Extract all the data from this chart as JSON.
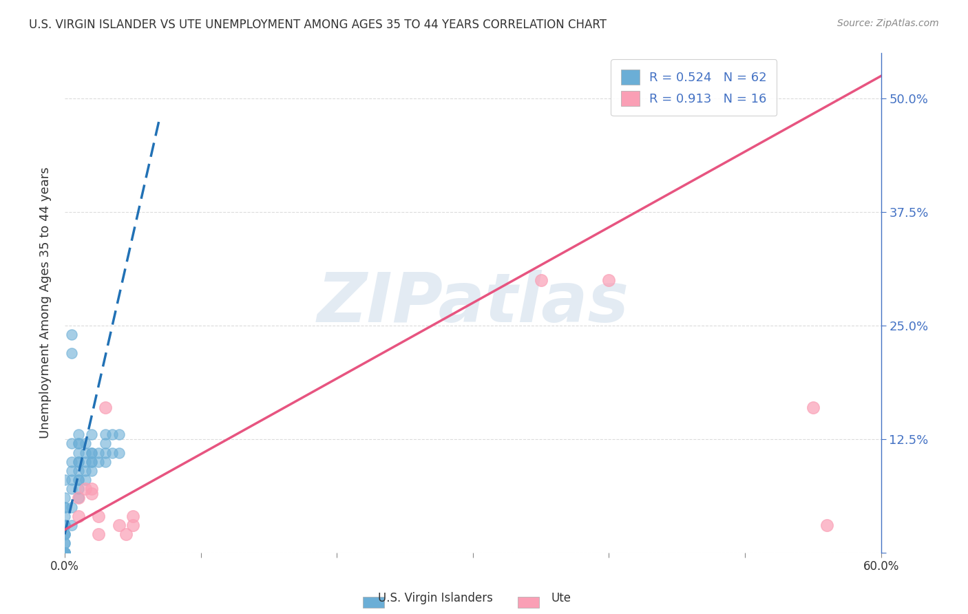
{
  "title": "U.S. VIRGIN ISLANDER VS UTE UNEMPLOYMENT AMONG AGES 35 TO 44 YEARS CORRELATION CHART",
  "source": "Source: ZipAtlas.com",
  "xlabel": "",
  "ylabel": "Unemployment Among Ages 35 to 44 years",
  "xlim": [
    0,
    0.6
  ],
  "ylim": [
    0,
    0.55
  ],
  "xticks": [
    0.0,
    0.1,
    0.2,
    0.3,
    0.4,
    0.5,
    0.6
  ],
  "yticks": [
    0.0,
    0.125,
    0.25,
    0.375,
    0.5
  ],
  "ytick_labels": [
    "",
    "12.5%",
    "25.0%",
    "37.5%",
    "50.0%"
  ],
  "xtick_labels": [
    "0.0%",
    "",
    "",
    "",
    "",
    "",
    "60.0%"
  ],
  "legend_labels": [
    "U.S. Virgin Islanders",
    "Ute"
  ],
  "blue_R": "0.524",
  "blue_N": "62",
  "pink_R": "0.913",
  "pink_N": "16",
  "blue_color": "#6baed6",
  "pink_color": "#fa9fb5",
  "blue_line_color": "#2171b5",
  "pink_line_color": "#e75480",
  "watermark": "ZIPatlas",
  "blue_scatter_x": [
    0.0,
    0.0,
    0.0,
    0.0,
    0.0,
    0.0,
    0.0,
    0.0,
    0.0,
    0.0,
    0.0,
    0.0,
    0.005,
    0.005,
    0.005,
    0.005,
    0.005,
    0.005,
    0.005,
    0.01,
    0.01,
    0.01,
    0.01,
    0.01,
    0.01,
    0.01,
    0.01,
    0.01,
    0.01,
    0.01,
    0.015,
    0.015,
    0.015,
    0.015,
    0.015,
    0.02,
    0.02,
    0.02,
    0.02,
    0.02,
    0.02,
    0.025,
    0.025,
    0.03,
    0.03,
    0.03,
    0.03,
    0.035,
    0.035,
    0.04,
    0.04,
    0.005,
    0.005,
    0.0,
    0.0,
    0.0,
    0.0,
    0.0,
    0.0,
    0.0,
    0.0,
    0.0
  ],
  "blue_scatter_y": [
    0.0,
    0.0,
    0.0,
    0.0,
    0.0,
    0.0,
    0.0,
    0.02,
    0.02,
    0.03,
    0.04,
    0.05,
    0.03,
    0.05,
    0.07,
    0.08,
    0.09,
    0.1,
    0.12,
    0.06,
    0.07,
    0.08,
    0.08,
    0.09,
    0.1,
    0.1,
    0.11,
    0.12,
    0.12,
    0.13,
    0.08,
    0.09,
    0.1,
    0.11,
    0.12,
    0.09,
    0.1,
    0.1,
    0.11,
    0.11,
    0.13,
    0.1,
    0.11,
    0.1,
    0.11,
    0.12,
    0.13,
    0.11,
    0.13,
    0.11,
    0.13,
    0.22,
    0.24,
    0.0,
    0.0,
    0.01,
    0.01,
    0.02,
    0.03,
    0.05,
    0.06,
    0.08
  ],
  "pink_scatter_x": [
    0.01,
    0.01,
    0.015,
    0.02,
    0.02,
    0.025,
    0.025,
    0.03,
    0.04,
    0.045,
    0.05,
    0.05,
    0.35,
    0.4,
    0.55,
    0.56
  ],
  "pink_scatter_y": [
    0.04,
    0.06,
    0.07,
    0.07,
    0.065,
    0.04,
    0.02,
    0.16,
    0.03,
    0.02,
    0.04,
    0.03,
    0.3,
    0.3,
    0.16,
    0.03
  ],
  "blue_trend_x": [
    0.0,
    0.07
  ],
  "blue_trend_y": [
    0.02,
    0.48
  ],
  "pink_trend_x": [
    0.0,
    0.6
  ],
  "pink_trend_y": [
    0.025,
    0.525
  ],
  "background_color": "#ffffff",
  "grid_color": "#cccccc",
  "title_color": "#333333",
  "axis_color": "#4472c4",
  "right_tick_color": "#4472c4"
}
